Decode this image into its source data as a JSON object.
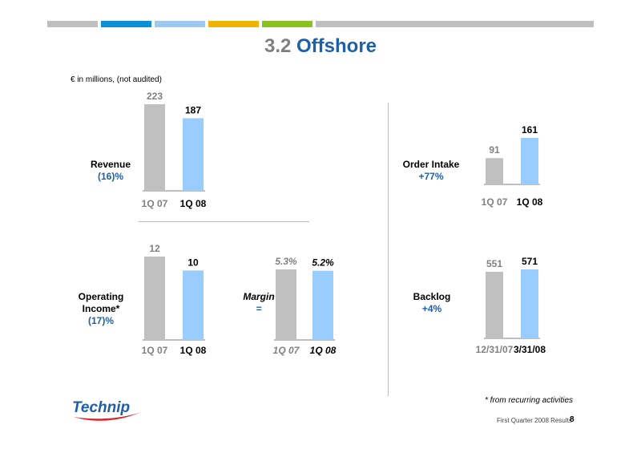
{
  "header_colors": [
    "#bfbfbf",
    "#0b8fd6",
    "#9cc9f0",
    "#f0b400",
    "#8cc21f",
    "#bfbfbf"
  ],
  "title": {
    "number": "3.2",
    "word": "Offshore"
  },
  "units_note": "€ in millions, (not audited)",
  "metrics": {
    "revenue": {
      "label": "Revenue",
      "change": "(16)%"
    },
    "order_intake": {
      "label": "Order Intake",
      "change": "+77%"
    },
    "operating_income": {
      "label_line1": "Operating",
      "label_line2": "Income*",
      "change": "(17)%"
    },
    "margin": {
      "label": "Margin",
      "change": "="
    },
    "backlog": {
      "label": "Backlog",
      "change": "+4%"
    }
  },
  "chart_data": [
    {
      "type": "bar",
      "id": "revenue",
      "categories": [
        "1Q 07",
        "1Q 08"
      ],
      "values": [
        223,
        187
      ],
      "value_labels": [
        "223",
        "187"
      ],
      "colors": [
        "#c0c0c0",
        "#99ccff"
      ]
    },
    {
      "type": "bar",
      "id": "order_intake",
      "categories": [
        "1Q 07",
        "1Q 08"
      ],
      "values": [
        91,
        161
      ],
      "value_labels": [
        "91",
        "161"
      ],
      "colors": [
        "#c0c0c0",
        "#99ccff"
      ]
    },
    {
      "type": "bar",
      "id": "operating_income",
      "categories": [
        "1Q 07",
        "1Q 08"
      ],
      "values": [
        12,
        10
      ],
      "value_labels": [
        "12",
        "10"
      ],
      "colors": [
        "#c0c0c0",
        "#99ccff"
      ]
    },
    {
      "type": "bar",
      "id": "margin",
      "categories": [
        "1Q 07",
        "1Q 08"
      ],
      "values": [
        5.3,
        5.2
      ],
      "value_labels": [
        "5.3%",
        "5.2%"
      ],
      "colors": [
        "#c0c0c0",
        "#99ccff"
      ],
      "italic": true
    },
    {
      "type": "bar",
      "id": "backlog",
      "categories": [
        "12/31/07",
        "3/31/08"
      ],
      "values": [
        551,
        571
      ],
      "value_labels": [
        "551",
        "571"
      ],
      "colors": [
        "#c0c0c0",
        "#99ccff"
      ]
    }
  ],
  "footnote": "* from recurring activities",
  "footer": {
    "text": "First Quarter 2008 Results",
    "page": "8"
  },
  "logo": {
    "text": "Technip",
    "color": "#1f5fa8",
    "swoosh_color": "#d8262c"
  }
}
